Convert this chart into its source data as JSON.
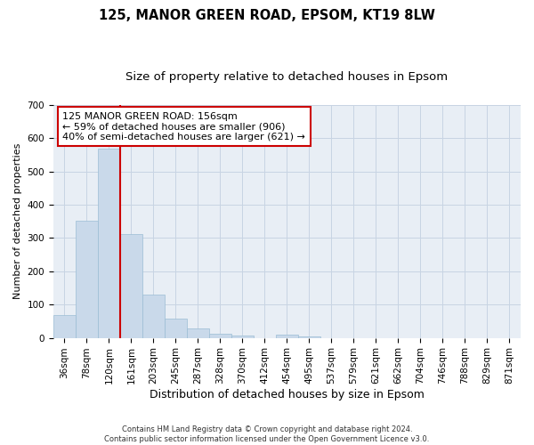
{
  "title1": "125, MANOR GREEN ROAD, EPSOM, KT19 8LW",
  "title2": "Size of property relative to detached houses in Epsom",
  "xlabel": "Distribution of detached houses by size in Epsom",
  "ylabel": "Number of detached properties",
  "categories": [
    "36sqm",
    "78sqm",
    "120sqm",
    "161sqm",
    "203sqm",
    "245sqm",
    "287sqm",
    "328sqm",
    "370sqm",
    "412sqm",
    "454sqm",
    "495sqm",
    "537sqm",
    "579sqm",
    "621sqm",
    "662sqm",
    "704sqm",
    "746sqm",
    "788sqm",
    "829sqm",
    "871sqm"
  ],
  "values": [
    68,
    352,
    568,
    312,
    130,
    58,
    27,
    13,
    6,
    0,
    10,
    5,
    0,
    0,
    0,
    0,
    0,
    0,
    0,
    0,
    0
  ],
  "bar_color": "#c9d9ea",
  "bar_edge_color": "#9bbdd4",
  "vline_color": "#cc0000",
  "annotation_text": "125 MANOR GREEN ROAD: 156sqm\n← 59% of detached houses are smaller (906)\n40% of semi-detached houses are larger (621) →",
  "annotation_box_color": "#ffffff",
  "annotation_box_edge_color": "#cc0000",
  "ylim": [
    0,
    700
  ],
  "yticks": [
    0,
    100,
    200,
    300,
    400,
    500,
    600,
    700
  ],
  "grid_color": "#c8d4e3",
  "bg_color": "#e8eef5",
  "footer": "Contains HM Land Registry data © Crown copyright and database right 2024.\nContains public sector information licensed under the Open Government Licence v3.0.",
  "title1_fontsize": 10.5,
  "title2_fontsize": 9.5,
  "xlabel_fontsize": 9,
  "ylabel_fontsize": 8,
  "tick_fontsize": 7.5,
  "annotation_fontsize": 8,
  "footer_fontsize": 6
}
